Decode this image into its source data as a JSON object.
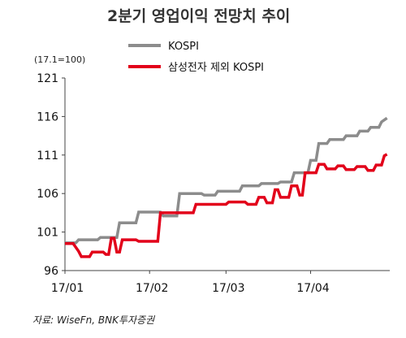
{
  "chart_data": {
    "type": "line",
    "title": "2분기 영업이익 전망치 추이",
    "unit_label": "(17.1=100)",
    "ylim": [
      96,
      121
    ],
    "yticks": [
      "121",
      "116",
      "111",
      "106",
      "101",
      "96"
    ],
    "xticks": [
      "17/01",
      "17/02",
      "17/03",
      "17/04"
    ],
    "x_domain": [
      "2017-01-01",
      "2017-04-30"
    ],
    "grid": false,
    "legend_position": "top-right",
    "series": [
      {
        "name": "KOSPI",
        "color": "#8c8c8c",
        "points": [
          [
            "2017-01-01",
            99.6
          ],
          [
            "2017-01-05",
            99.6
          ],
          [
            "2017-01-06",
            100.0
          ],
          [
            "2017-01-13",
            100.0
          ],
          [
            "2017-01-14",
            100.3
          ],
          [
            "2017-01-20",
            100.3
          ],
          [
            "2017-01-21",
            102.2
          ],
          [
            "2017-01-27",
            102.2
          ],
          [
            "2017-01-28",
            103.6
          ],
          [
            "2017-02-05",
            103.6
          ],
          [
            "2017-02-06",
            103.1
          ],
          [
            "2017-02-11",
            103.1
          ],
          [
            "2017-02-12",
            106.0
          ],
          [
            "2017-02-20",
            106.0
          ],
          [
            "2017-02-21",
            105.8
          ],
          [
            "2017-02-25",
            105.8
          ],
          [
            "2017-02-26",
            106.3
          ],
          [
            "2017-03-06",
            106.3
          ],
          [
            "2017-03-07",
            107.0
          ],
          [
            "2017-03-13",
            107.0
          ],
          [
            "2017-03-14",
            107.3
          ],
          [
            "2017-03-20",
            107.3
          ],
          [
            "2017-03-21",
            107.5
          ],
          [
            "2017-03-25",
            107.5
          ],
          [
            "2017-03-26",
            108.7
          ],
          [
            "2017-03-31",
            108.7
          ],
          [
            "2017-04-01",
            110.3
          ],
          [
            "2017-04-03",
            110.3
          ],
          [
            "2017-04-04",
            112.5
          ],
          [
            "2017-04-07",
            112.5
          ],
          [
            "2017-04-08",
            113.0
          ],
          [
            "2017-04-13",
            113.0
          ],
          [
            "2017-04-14",
            113.5
          ],
          [
            "2017-04-18",
            113.5
          ],
          [
            "2017-04-19",
            114.1
          ],
          [
            "2017-04-22",
            114.1
          ],
          [
            "2017-04-23",
            114.6
          ],
          [
            "2017-04-26",
            114.6
          ],
          [
            "2017-04-27",
            115.3
          ],
          [
            "2017-04-29",
            115.8
          ]
        ]
      },
      {
        "name": "삼성전자 제외 KOSPI",
        "color": "#e2001a",
        "points": [
          [
            "2017-01-01",
            99.5
          ],
          [
            "2017-01-04",
            99.5
          ],
          [
            "2017-01-06",
            98.5
          ],
          [
            "2017-01-07",
            97.8
          ],
          [
            "2017-01-10",
            97.8
          ],
          [
            "2017-01-11",
            98.4
          ],
          [
            "2017-01-15",
            98.4
          ],
          [
            "2017-01-16",
            98.1
          ],
          [
            "2017-01-17",
            98.1
          ],
          [
            "2017-01-18",
            100.2
          ],
          [
            "2017-01-19",
            100.2
          ],
          [
            "2017-01-20",
            98.4
          ],
          [
            "2017-01-21",
            98.4
          ],
          [
            "2017-01-22",
            100.0
          ],
          [
            "2017-01-27",
            100.0
          ],
          [
            "2017-01-28",
            99.8
          ],
          [
            "2017-02-04",
            99.8
          ],
          [
            "2017-02-05",
            103.5
          ],
          [
            "2017-02-17",
            103.5
          ],
          [
            "2017-02-18",
            104.6
          ],
          [
            "2017-03-01",
            104.6
          ],
          [
            "2017-03-02",
            104.9
          ],
          [
            "2017-03-08",
            104.9
          ],
          [
            "2017-03-09",
            104.6
          ],
          [
            "2017-03-12",
            104.6
          ],
          [
            "2017-03-13",
            105.5
          ],
          [
            "2017-03-15",
            105.5
          ],
          [
            "2017-03-16",
            104.8
          ],
          [
            "2017-03-18",
            104.8
          ],
          [
            "2017-03-19",
            106.5
          ],
          [
            "2017-03-20",
            106.5
          ],
          [
            "2017-03-21",
            105.5
          ],
          [
            "2017-03-24",
            105.5
          ],
          [
            "2017-03-25",
            107.0
          ],
          [
            "2017-03-27",
            107.0
          ],
          [
            "2017-03-28",
            105.8
          ],
          [
            "2017-03-29",
            105.8
          ],
          [
            "2017-03-30",
            108.7
          ],
          [
            "2017-04-03",
            108.7
          ],
          [
            "2017-04-04",
            109.8
          ],
          [
            "2017-04-06",
            109.8
          ],
          [
            "2017-04-07",
            109.2
          ],
          [
            "2017-04-10",
            109.2
          ],
          [
            "2017-04-11",
            109.6
          ],
          [
            "2017-04-13",
            109.6
          ],
          [
            "2017-04-14",
            109.1
          ],
          [
            "2017-04-17",
            109.1
          ],
          [
            "2017-04-18",
            109.5
          ],
          [
            "2017-04-21",
            109.5
          ],
          [
            "2017-04-22",
            109.0
          ],
          [
            "2017-04-24",
            109.0
          ],
          [
            "2017-04-25",
            109.7
          ],
          [
            "2017-04-27",
            109.7
          ],
          [
            "2017-04-28",
            110.9
          ],
          [
            "2017-04-29",
            111.1
          ]
        ]
      }
    ]
  },
  "source": "자료: WiseFn, BNK투자증권"
}
